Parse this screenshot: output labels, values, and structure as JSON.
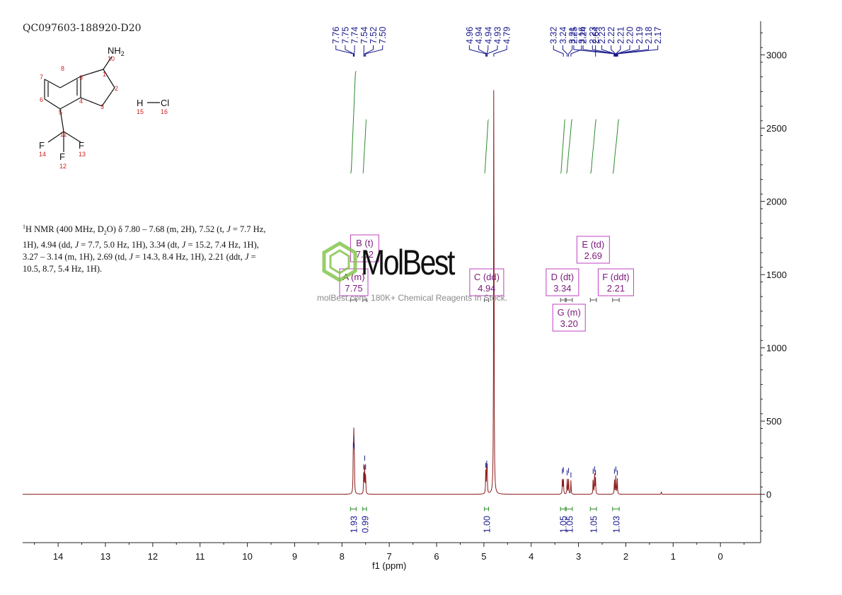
{
  "sample_id": "QC097603-188920-D20",
  "description": {
    "nmr": "1H NMR (400 MHz, D2O) δ 7.80 – 7.68 (m, 2H), 7.52 (t, J = 7.7 Hz, 1H), 4.94 (dd, J = 7.7, 5.0 Hz, 1H), 3.34 (dt, J = 15.2, 7.4 Hz, 1H), 3.27 – 3.14 (m, 1H), 2.69 (td, J = 14.3, 8.4 Hz, 1H), 2.21 (ddt, J = 10.5, 8.7, 5.4 Hz, 1H).",
    "line1_pre": "H NMR (400 MHz, D",
    "line1_post": "O) δ 7.80 – 7.68 (m, 2H), 7.52 (t, ",
    "line1_end": " = 7.7 Hz,",
    "line2_a": "1H), 4.94 (dd, ",
    "line2_b": " = 7.7, 5.0 Hz, 1H), 3.34 (dt, ",
    "line2_c": " = 15.2, 7.4 Hz, 1H),",
    "line3_a": "3.27 – 3.14 (m, 1H), 2.69 (td, ",
    "line3_b": " = 14.3, 8.4 Hz, 1H), 2.21 (ddt, ",
    "line4_a": "10.5, 8.7, 5.4 Hz, 1H).",
    "sup1": "1",
    "sub2": "2",
    "J": "J"
  },
  "watermark": {
    "brand": "MolBest",
    "tagline": "molBest.com, 180K+ Chemical Reagents In Stock."
  },
  "structure": {
    "atoms": {
      "n10": "NH",
      "n10_sub": "2",
      "h15": "H",
      "cl16": "Cl",
      "f14": "F",
      "f12": "F",
      "f13": "F"
    },
    "numbers": [
      "1",
      "2",
      "3",
      "4",
      "5",
      "6",
      "7",
      "8",
      "9",
      "10",
      "11",
      "12",
      "13",
      "14",
      "15",
      "16"
    ]
  },
  "colors": {
    "spectrum": "#8b1a1a",
    "integral": "#2e8b2e",
    "peak_label": "#1a1a8c",
    "multiplet_box": "#c040c0",
    "multiplet_text": "#7a1a7a",
    "axis": "#222222",
    "atom_number": "#cc2020"
  },
  "chart_data": {
    "type": "line",
    "title": "",
    "xlabel": "f1 (ppm)",
    "ylabel": "",
    "xlim": [
      14.75,
      -0.85
    ],
    "ylim": [
      -330,
      3230
    ],
    "x_ticks": [
      14,
      13,
      12,
      11,
      10,
      9,
      8,
      7,
      6,
      5,
      4,
      3,
      2,
      1,
      0
    ],
    "y_ticks": [
      0,
      500,
      1000,
      1500,
      2000,
      2500,
      3000
    ],
    "peak_labels": [
      "7.76",
      "7.75",
      "7.74",
      "7.54",
      "7.52",
      "7.50",
      "4.96",
      "4.94",
      "4.94",
      "4.93",
      "4.79",
      "3.32",
      "3.24",
      "3.21",
      "3.16",
      "2.64",
      "2.25",
      "2.24",
      "2.23",
      "2.23",
      "2.22",
      "2.21",
      "2.20",
      "2.19",
      "2.18",
      "2.17"
    ],
    "peaks": [
      {
        "ppm": 7.76,
        "height": 300
      },
      {
        "ppm": 7.75,
        "height": 340
      },
      {
        "ppm": 7.74,
        "height": 290
      },
      {
        "ppm": 7.54,
        "height": 150
      },
      {
        "ppm": 7.52,
        "height": 210
      },
      {
        "ppm": 7.5,
        "height": 150
      },
      {
        "ppm": 4.96,
        "height": 160
      },
      {
        "ppm": 4.94,
        "height": 175
      },
      {
        "ppm": 4.93,
        "height": 155
      },
      {
        "ppm": 4.79,
        "height": 3200
      },
      {
        "ppm": 3.34,
        "height": 120
      },
      {
        "ppm": 3.32,
        "height": 130
      },
      {
        "ppm": 3.24,
        "height": 110
      },
      {
        "ppm": 3.21,
        "height": 125
      },
      {
        "ppm": 3.16,
        "height": 95
      },
      {
        "ppm": 2.69,
        "height": 120
      },
      {
        "ppm": 2.66,
        "height": 135
      },
      {
        "ppm": 2.64,
        "height": 110
      },
      {
        "ppm": 2.24,
        "height": 120
      },
      {
        "ppm": 2.21,
        "height": 135
      },
      {
        "ppm": 2.18,
        "height": 110
      },
      {
        "ppm": 1.25,
        "height": 18
      }
    ],
    "integrals": [
      {
        "from": 7.82,
        "to": 7.7,
        "value": "1.93",
        "low": 2190,
        "high": 2890
      },
      {
        "from": 7.56,
        "to": 7.48,
        "value": "0.99",
        "low": 2190,
        "high": 2560
      },
      {
        "from": 4.99,
        "to": 4.9,
        "value": "1.00",
        "low": 2190,
        "high": 2560
      },
      {
        "from": 3.38,
        "to": 3.28,
        "value": "1.05",
        "low": 2190,
        "high": 2560
      },
      {
        "from": 3.26,
        "to": 3.13,
        "value": "1.05",
        "low": 2190,
        "high": 2560
      },
      {
        "from": 2.75,
        "to": 2.62,
        "value": "1.05",
        "low": 2190,
        "high": 2560
      },
      {
        "from": 2.28,
        "to": 2.14,
        "value": "1.03",
        "low": 2190,
        "high": 2560
      }
    ],
    "multiplets": [
      {
        "id": "A",
        "label": "A (m)",
        "value": "7.75",
        "ppm": 7.75
      },
      {
        "id": "B",
        "label": "B (t)",
        "value": "7.52",
        "ppm": 7.52
      },
      {
        "id": "C",
        "label": "C (dd)",
        "value": "4.94",
        "ppm": 4.94
      },
      {
        "id": "D",
        "label": "D (dt)",
        "value": "3.34",
        "ppm": 3.34
      },
      {
        "id": "E",
        "label": "E (td)",
        "value": "2.69",
        "ppm": 2.69
      },
      {
        "id": "F",
        "label": "F (ddt)",
        "value": "2.21",
        "ppm": 2.21
      },
      {
        "id": "G",
        "label": "G (m)",
        "value": "3.20",
        "ppm": 3.2
      }
    ]
  }
}
